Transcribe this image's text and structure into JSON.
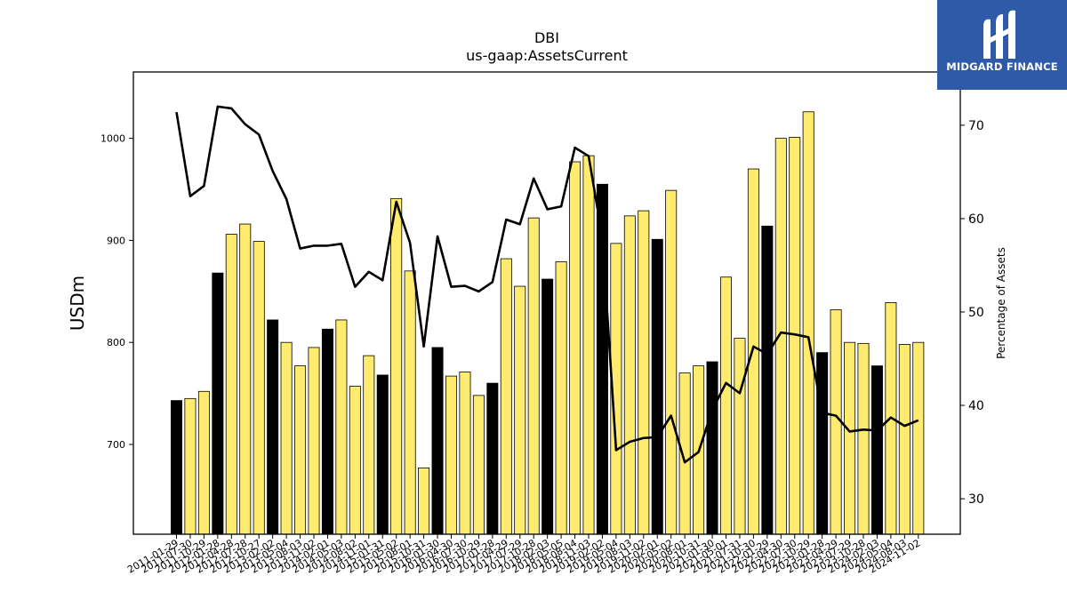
{
  "chart_data": {
    "type": "bar",
    "title": "DBI",
    "subtitle": "us-gaap:AssetsCurrent",
    "ylabel": "USDm",
    "y2label": "Percentage of Assets",
    "ylim": [
      612,
      1065
    ],
    "y2lim": [
      26.2,
      75.7
    ],
    "yticks": [
      700,
      800,
      900,
      1000
    ],
    "y2ticks": [
      30,
      40,
      50,
      60,
      70
    ],
    "grid": false,
    "categories": [
      "2011-01-29",
      "2011-07-30",
      "2011-10-29",
      "2012-01-28",
      "2012-04-28",
      "2012-07-28",
      "2012-10-27",
      "2013-02-02",
      "2013-05-04",
      "2013-08-03",
      "2013-11-02",
      "2014-02-01",
      "2014-05-03",
      "2014-08-02",
      "2014-11-01",
      "2015-01-31",
      "2015-05-02",
      "2015-08-01",
      "2015-10-31",
      "2016-01-30",
      "2016-04-30",
      "2016-07-30",
      "2016-10-29",
      "2017-01-28",
      "2017-04-29",
      "2017-07-29",
      "2017-10-28",
      "2018-02-03",
      "2018-05-05",
      "2018-08-04",
      "2018-11-03",
      "2019-02-02",
      "2019-05-04",
      "2019-08-03",
      "2019-11-02",
      "2020-02-01",
      "2020-05-02",
      "2020-08-01",
      "2020-10-31",
      "2021-01-30",
      "2021-05-01",
      "2021-07-31",
      "2021-10-30",
      "2022-01-29",
      "2022-04-30",
      "2022-07-30",
      "2022-10-29",
      "2023-01-28",
      "2023-04-29",
      "2023-07-29",
      "2023-10-28",
      "2024-02-03",
      "2024-05-04",
      "2024-08-03",
      "2024-11-02"
    ],
    "series": [
      {
        "kind": "bar",
        "values": [
          743,
          745,
          752,
          868,
          906,
          916,
          899,
          822,
          800,
          777,
          795,
          813,
          822,
          757,
          787,
          768,
          941,
          870,
          677,
          795,
          767,
          771,
          748,
          760,
          882,
          855,
          922,
          862,
          879,
          977,
          983,
          955,
          897,
          924,
          929,
          901,
          949,
          770,
          777,
          781,
          864,
          804,
          970,
          914,
          1000,
          1001,
          1026,
          790,
          832,
          800,
          799,
          777,
          839,
          798,
          800
        ],
        "highlight": [
          0,
          3,
          7,
          11,
          15,
          19,
          23,
          27,
          31,
          35,
          39,
          43,
          47,
          51
        ],
        "colors": {
          "highlight": "#000000",
          "normal": "#ffec6e"
        }
      },
      {
        "kind": "line",
        "axis": "right",
        "values": [
          71.4,
          62.4,
          63.5,
          72.0,
          71.8,
          70.1,
          69.0,
          65.1,
          62.1,
          56.8,
          57.1,
          57.1,
          57.3,
          52.7,
          54.3,
          53.4,
          61.8,
          57.4,
          46.3,
          58.1,
          52.7,
          52.8,
          52.2,
          53.2,
          59.9,
          59.4,
          64.3,
          61.0,
          61.3,
          67.6,
          66.7,
          58.0,
          35.2,
          36.1,
          36.5,
          36.6,
          38.9,
          33.9,
          35.0,
          39.5,
          42.4,
          41.3,
          46.3,
          45.5,
          47.8,
          47.6,
          47.3,
          39.2,
          38.9,
          37.2,
          37.4,
          37.3,
          38.7,
          37.8,
          38.4
        ],
        "color": "#000000"
      }
    ]
  },
  "logo": {
    "text": "MIDGARD FINANCE",
    "icon": "midgard-m-logo-icon",
    "color": "#2f5aa8"
  }
}
